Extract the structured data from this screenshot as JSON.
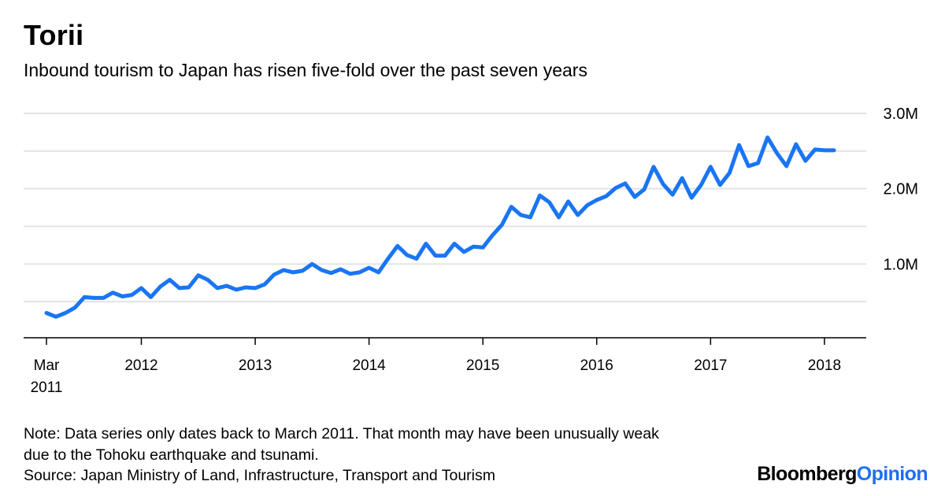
{
  "header": {
    "title": "Torii",
    "subtitle": "Inbound tourism to Japan has risen five-fold over the past seven years"
  },
  "footer": {
    "note_line1": "Note: Data series only dates back to March 2011. That month may have been unusually weak",
    "note_line2": "due to the Tohoku earthquake and tsunami.",
    "source": "Source: Japan Ministry of Land, Infrastructure, Transport and Tourism",
    "brand_main": "Bloomberg",
    "brand_accent": "Opinion"
  },
  "colors": {
    "line": "#1a75f5",
    "grid": "#e3e3e3",
    "axis": "#000000",
    "brand_accent": "#1d6ff2"
  },
  "chart_data": {
    "type": "line",
    "title": "Torii",
    "subtitle": "Inbound tourism to Japan has risen five-fold over the past seven years",
    "xlabel": "",
    "ylabel": "",
    "x_start": "2011-03",
    "x_end": "2018-03",
    "xlim": [
      "2011-03",
      "2018-03"
    ],
    "ylim": [
      0,
      3000000
    ],
    "grid": true,
    "legend": "none",
    "y_axis_position": "right",
    "y_ticks": [
      {
        "value": 3000000,
        "label": "3.0M"
      },
      {
        "value": 2000000,
        "label": "2.0M"
      },
      {
        "value": 1000000,
        "label": "1.0M"
      }
    ],
    "x_ticks": [
      {
        "x": "2011-03",
        "label": "Mar",
        "label2": "2011"
      },
      {
        "x": "2012-01",
        "label": "2012"
      },
      {
        "x": "2013-01",
        "label": "2013"
      },
      {
        "x": "2014-01",
        "label": "2014"
      },
      {
        "x": "2015-01",
        "label": "2015"
      },
      {
        "x": "2016-01",
        "label": "2016"
      },
      {
        "x": "2017-01",
        "label": "2017"
      },
      {
        "x": "2018-01",
        "label": "2018"
      }
    ],
    "series": [
      {
        "values": [
          350000,
          300000,
          350000,
          420000,
          560000,
          550000,
          550000,
          620000,
          570000,
          590000,
          680000,
          560000,
          700000,
          790000,
          680000,
          690000,
          850000,
          790000,
          680000,
          710000,
          660000,
          690000,
          680000,
          730000,
          860000,
          920000,
          890000,
          910000,
          1000000,
          920000,
          880000,
          930000,
          870000,
          890000,
          950000,
          890000,
          1070000,
          1240000,
          1120000,
          1070000,
          1270000,
          1110000,
          1110000,
          1270000,
          1160000,
          1230000,
          1220000,
          1380000,
          1520000,
          1760000,
          1650000,
          1620000,
          1910000,
          1820000,
          1620000,
          1830000,
          1650000,
          1780000,
          1850000,
          1900000,
          2010000,
          2070000,
          1890000,
          1990000,
          2290000,
          2060000,
          1920000,
          2140000,
          1880000,
          2050000,
          2290000,
          2050000,
          2210000,
          2580000,
          2300000,
          2340000,
          2680000,
          2470000,
          2300000,
          2590000,
          2370000,
          2520000,
          2510000,
          2510000
        ]
      }
    ]
  }
}
